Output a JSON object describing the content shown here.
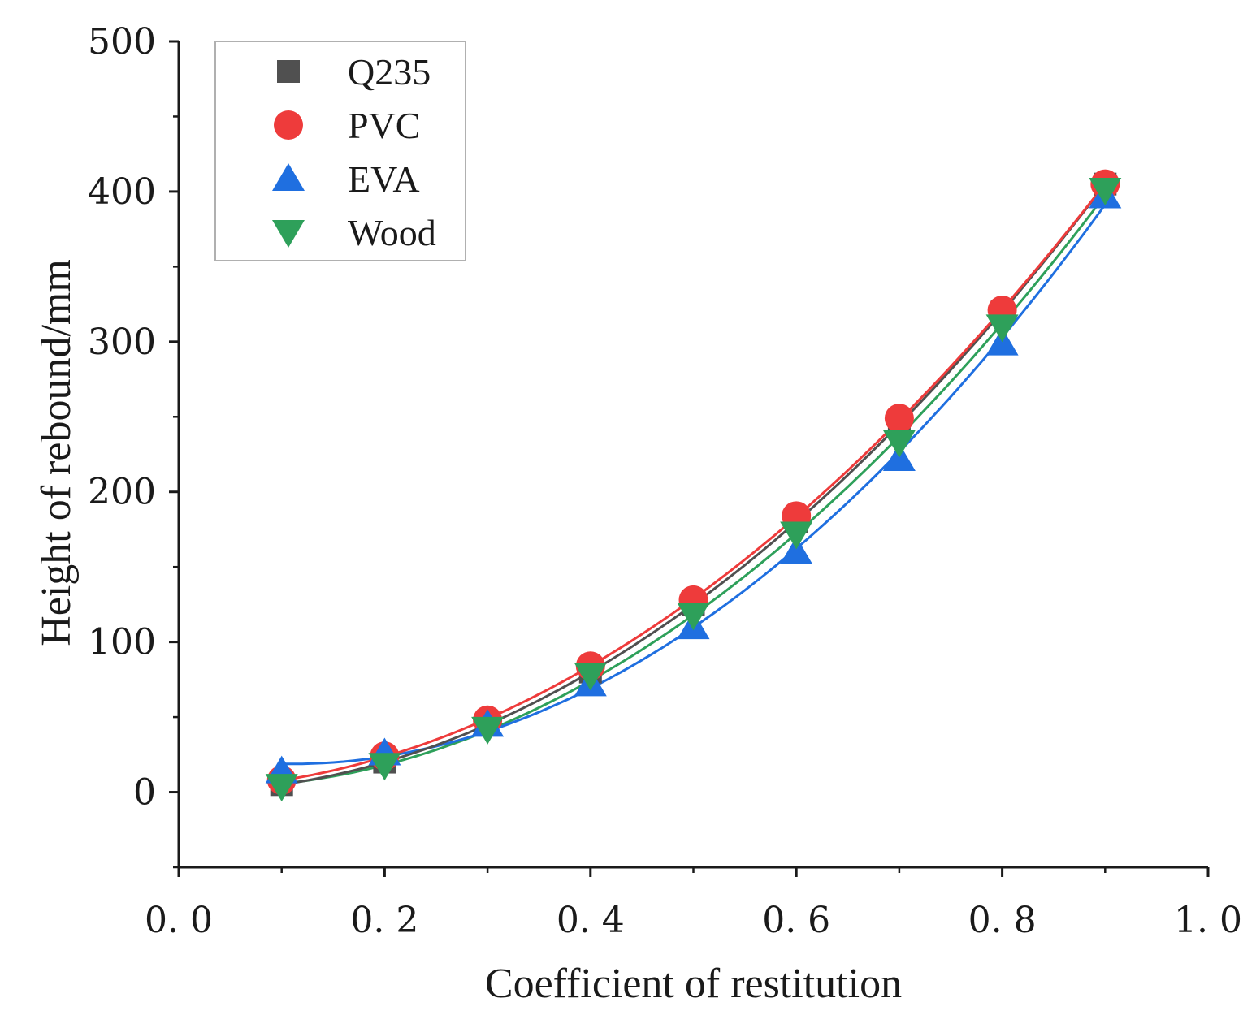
{
  "chart_data": {
    "type": "scatter",
    "title": "",
    "xlabel": "Coefficient of restitution",
    "ylabel": "Height of rebound/mm",
    "xlim": [
      0.0,
      1.0
    ],
    "ylim": [
      -50,
      500
    ],
    "x_ticks": [
      0.0,
      0.2,
      0.4,
      0.6,
      0.8,
      1.0
    ],
    "x_tick_labels": [
      "0. 0",
      "0. 2",
      "0. 4",
      "0. 6",
      "0. 8",
      "1. 0"
    ],
    "y_ticks": [
      0,
      100,
      200,
      300,
      400,
      500
    ],
    "y_tick_labels": [
      "0",
      "100",
      "200",
      "300",
      "400",
      "500"
    ],
    "grid": false,
    "legend_position": "top-left",
    "x": [
      0.1,
      0.2,
      0.3,
      0.4,
      0.5,
      0.6,
      0.7,
      0.8,
      0.9
    ],
    "series": [
      {
        "name": "Q235",
        "marker": "square",
        "color": "#505050",
        "values": [
          5,
          20,
          45,
          80,
          125,
          180,
          245,
          320,
          405
        ]
      },
      {
        "name": "PVC",
        "marker": "circle",
        "color": "#ee3b3b",
        "values": [
          8,
          24,
          48,
          84,
          128,
          184,
          249,
          321,
          405
        ]
      },
      {
        "name": "EVA",
        "marker": "triangle-up",
        "color": "#1f6fe0",
        "values": [
          14,
          26,
          45,
          72,
          110,
          160,
          222,
          299,
          397
        ]
      },
      {
        "name": "Wood",
        "marker": "triangle-down",
        "color": "#2ea05a",
        "values": [
          4,
          18,
          42,
          78,
          118,
          172,
          233,
          310,
          401
        ]
      }
    ]
  }
}
